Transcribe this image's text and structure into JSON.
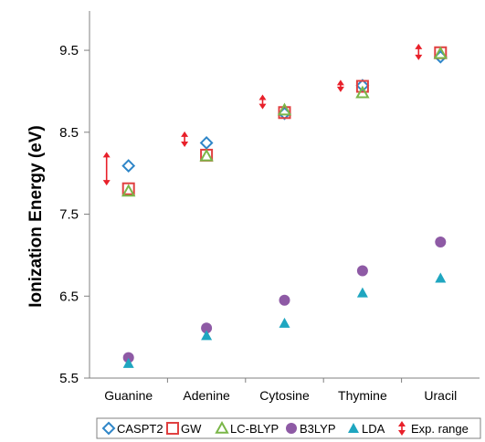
{
  "chart_data": {
    "type": "scatter",
    "title": "",
    "xlabel": "",
    "ylabel": "Ionization Energy (eV)",
    "categories": [
      "Guanine",
      "Adenine",
      "Cytosine",
      "Thymine",
      "Uracil"
    ],
    "yticks": [
      "5.5",
      "6.5",
      "7.5",
      "8.5",
      "9.5"
    ],
    "ylim": [
      5.5,
      9.98
    ],
    "grid": false,
    "legend_position": "bottom",
    "series": [
      {
        "name": "CASPT2",
        "marker": "diamond",
        "color": "#2f86c8",
        "values": [
          8.09,
          8.37,
          8.73,
          9.07,
          9.42
        ]
      },
      {
        "name": "GW",
        "marker": "square",
        "color": "#e04040",
        "values": [
          7.81,
          8.22,
          8.74,
          9.06,
          9.47
        ]
      },
      {
        "name": "LC-BLYP",
        "marker": "triangle-open",
        "color": "#7ab648",
        "values": [
          7.78,
          8.21,
          8.77,
          8.98,
          9.46
        ]
      },
      {
        "name": "B3LYP",
        "marker": "circle",
        "color": "#8e5aa5",
        "values": [
          5.75,
          6.11,
          6.45,
          6.81,
          7.16
        ]
      },
      {
        "name": "LDA",
        "marker": "triangle",
        "color": "#1fa6c0",
        "values": [
          5.68,
          6.02,
          6.17,
          6.54,
          6.72
        ]
      }
    ],
    "exp_range": {
      "name": "Exp. range",
      "color": "#e8202a",
      "ranges": [
        [
          7.85,
          8.26
        ],
        [
          8.32,
          8.51
        ],
        [
          8.78,
          8.96
        ],
        [
          8.99,
          9.14
        ],
        [
          9.38,
          9.58
        ]
      ]
    }
  }
}
